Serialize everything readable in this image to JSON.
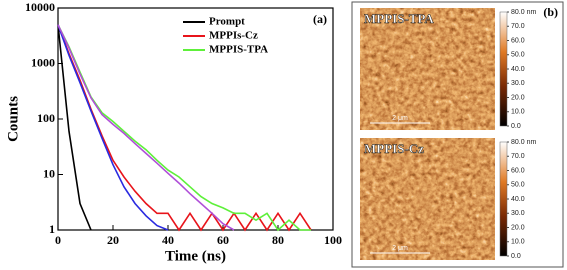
{
  "chart_data": {
    "type": "line",
    "panel_label": "(a)",
    "x_label": "Time (ns)",
    "y_label": "Counts",
    "log_y": true,
    "legend": "upper right",
    "xlim": [
      0,
      100
    ],
    "xticks": [
      0,
      20,
      40,
      60,
      80,
      100
    ],
    "ylim": [
      1,
      10000
    ],
    "yticks": [
      1,
      10,
      100,
      1000,
      10000
    ],
    "x": [
      0,
      4,
      8,
      12,
      16,
      20,
      24,
      28,
      32,
      36,
      40,
      44,
      48,
      52,
      56,
      60,
      64,
      68,
      72,
      76,
      80,
      84,
      88,
      92
    ],
    "series": [
      {
        "name": "Prompt",
        "color": "#000000",
        "values": [
          5000,
          60,
          3,
          1,
          null,
          null,
          null,
          null,
          null,
          null,
          null,
          null,
          null,
          null,
          null,
          null,
          null,
          null,
          null,
          null,
          null,
          null,
          null,
          null
        ]
      },
      {
        "name": "MPPIs-Cz",
        "color": "#e8141b",
        "values": [
          5000,
          1500,
          500,
          150,
          50,
          18,
          9,
          5,
          3,
          2,
          2,
          1,
          2,
          1,
          2,
          1,
          2,
          1,
          2,
          1,
          2,
          1,
          2,
          1
        ]
      },
      {
        "name": "MPPIS-TPA",
        "color": "#5ef03a",
        "values": [
          5000,
          2000,
          700,
          250,
          130,
          90,
          60,
          40,
          28,
          18,
          12,
          9,
          6,
          4,
          3,
          2.5,
          2,
          2,
          1.5,
          2,
          1,
          1.5,
          1,
          1
        ]
      },
      {
        "color": "#2a2ae0",
        "values": [
          5000,
          1400,
          450,
          140,
          45,
          15,
          6,
          3,
          1.8,
          1.2,
          1,
          null,
          null,
          null,
          null,
          null,
          null,
          null,
          null,
          null,
          null,
          null,
          null,
          null
        ]
      },
      {
        "color": "#b050d8",
        "values": [
          5000,
          1900,
          650,
          240,
          120,
          80,
          55,
          36,
          24,
          16,
          10.5,
          7,
          4.5,
          3,
          2,
          1.3,
          1,
          null,
          null,
          null,
          null,
          null,
          null,
          null
        ]
      }
    ]
  },
  "afm": {
    "panel_label": "(b)",
    "zlim": [
      0,
      80
    ],
    "colorbar_ticks": [
      {
        "value": 80,
        "label": "80.0 nm"
      },
      {
        "value": 70,
        "label": "70.0"
      },
      {
        "value": 60,
        "label": "60.0"
      },
      {
        "value": 50,
        "label": "50.0"
      },
      {
        "value": 40,
        "label": "40.0"
      },
      {
        "value": 30,
        "label": "30.0"
      },
      {
        "value": 20,
        "label": "20.0"
      },
      {
        "value": 10,
        "label": "10.0"
      },
      {
        "value": 0,
        "label": "0.0"
      }
    ],
    "images": [
      {
        "title": "MPPIS-TPA",
        "scale_bar": "2 μm"
      },
      {
        "title": "MPPIS-Cz",
        "scale_bar": "2 μm"
      }
    ]
  }
}
